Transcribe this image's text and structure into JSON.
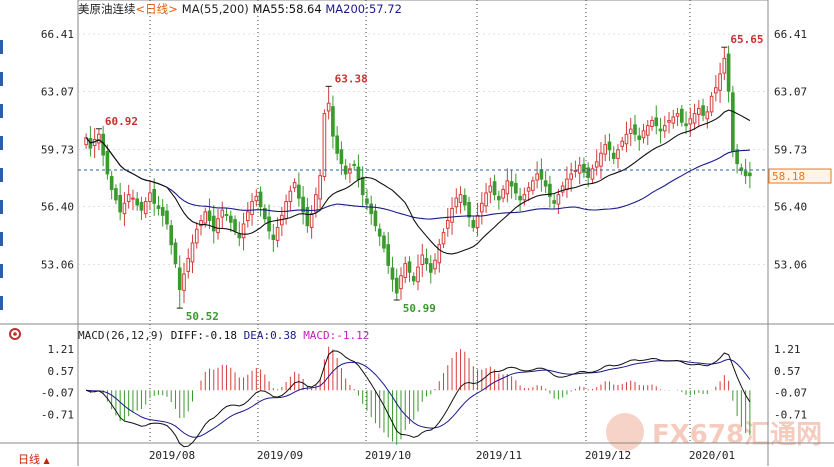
{
  "header": {
    "symbol": "美原油连续",
    "period_tag": "<日线>",
    "ma_label": "MA(55,200)",
    "ma55_label": "MA55:58.64",
    "ma200_label": "MA200:57.72"
  },
  "macd_header": {
    "macd_label": "MACD(26,12,9)",
    "diff_label": "DIFF:-0.18",
    "dea_label": "DEA:0.38",
    "macd_value_label": "MACD:-1.12"
  },
  "period_button": "日线",
  "watermark": "FX678汇通网",
  "colors": {
    "up": "#d43d3d",
    "down": "#3a9a2e",
    "ma55": "#111111",
    "ma200": "#1a1a8c",
    "grid": "#444444",
    "hline": "#2f5f9f",
    "price_box": "#e87820",
    "macd_diff": "#111111",
    "macd_dea": "#1a1a8c"
  },
  "chart_data": [
    {
      "type": "candlestick",
      "x_ticks": [
        "2019/08",
        "2019/09",
        "2019/10",
        "2019/11",
        "2019/12",
        "2020/01"
      ],
      "y_ticks": [
        "66.41",
        "63.07",
        "59.73",
        "56.40",
        "53.06"
      ],
      "ylim": [
        49.6,
        67.4
      ],
      "current_price": "58.18",
      "annotations": [
        {
          "label": "60.92",
          "bar": 3,
          "value": 60.92
        },
        {
          "label": "50.52",
          "bar": 22,
          "value": 50.52
        },
        {
          "label": "63.38",
          "bar": 57,
          "value": 63.38
        },
        {
          "label": "50.99",
          "bar": 73,
          "value": 50.99
        },
        {
          "label": "65.65",
          "bar": 150,
          "value": 65.65
        }
      ],
      "close": [
        60.4,
        59.8,
        60.3,
        60.6,
        59.4,
        58.3,
        57.4,
        56.8,
        56.1,
        56.6,
        57.1,
        56.9,
        56.5,
        56.2,
        56.7,
        57.2,
        56.6,
        56.3,
        55.9,
        55.4,
        54.2,
        53.1,
        51.6,
        52.5,
        53.4,
        54.3,
        55.1,
        55.6,
        56.1,
        55.6,
        55.0,
        55.7,
        56.2,
        55.9,
        55.5,
        55.0,
        54.6,
        55.4,
        56.1,
        56.7,
        57.0,
        56.4,
        55.7,
        55.0,
        54.5,
        55.2,
        55.9,
        56.7,
        57.3,
        57.8,
        56.9,
        56.1,
        55.3,
        56.0,
        57.1,
        58.2,
        61.8,
        62.4,
        60.5,
        59.5,
        58.9,
        58.3,
        58.6,
        58.8,
        58.0,
        57.1,
        56.6,
        56.0,
        55.3,
        54.7,
        54.0,
        53.0,
        52.2,
        51.4,
        52.4,
        53.1,
        52.6,
        52.1,
        52.9,
        53.6,
        53.1,
        52.6,
        53.3,
        54.2,
        54.9,
        55.6,
        56.3,
        56.9,
        57.1,
        56.5,
        55.8,
        55.2,
        55.9,
        56.6,
        57.2,
        57.6,
        57.1,
        56.8,
        57.4,
        57.9,
        57.6,
        57.2,
        56.8,
        57.1,
        57.5,
        57.9,
        58.3,
        58.0,
        57.6,
        57.0,
        56.6,
        57.1,
        57.6,
        58.0,
        58.3,
        58.5,
        58.8,
        58.4,
        58.1,
        58.6,
        59.0,
        59.5,
        60.0,
        59.7,
        59.2,
        59.7,
        60.2,
        60.6,
        60.9,
        60.6,
        60.3,
        60.8,
        61.1,
        61.4,
        61.1,
        60.8,
        61.1,
        61.4,
        61.6,
        61.8,
        61.3,
        61.1,
        61.5,
        61.8,
        62.1,
        61.7,
        61.9,
        62.8,
        63.3,
        64.1,
        65.0,
        63.1,
        59.6,
        58.9,
        58.5,
        58.2,
        58.2
      ],
      "open_offsets_note": "open derived from previous close"
    },
    {
      "type": "macd",
      "y_ticks": [
        "1.21",
        "0.57",
        "-0.07",
        "-0.71"
      ],
      "ylim": [
        -1.55,
        1.45
      ]
    }
  ]
}
